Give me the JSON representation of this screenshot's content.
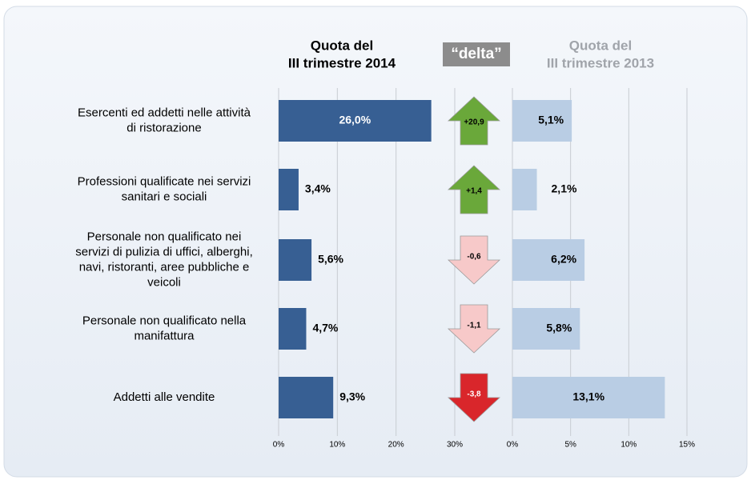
{
  "chart_data": [
    {
      "type": "hbar",
      "title": [
        "Quota del",
        "III trimestre 2014"
      ],
      "categories": [
        [
          "Esercenti ed addetti nelle attività",
          "di ristorazione"
        ],
        [
          "Professioni qualificate nei servizi",
          "sanitari e sociali"
        ],
        [
          "Personale non qualificato nei",
          "servizi di pulizia di uffici, alberghi,",
          "navi, ristoranti, aree pubbliche e",
          "veicoli"
        ],
        [
          "Personale non qualificato nella",
          "manifattura"
        ],
        [
          "Addetti alle vendite"
        ]
      ],
      "values": [
        26.0,
        3.4,
        5.6,
        4.7,
        9.3
      ],
      "value_labels": [
        "26,0%",
        "3,4%",
        "5,6%",
        "4,7%",
        "9,3%"
      ],
      "color": "#375f93",
      "xlim": [
        0,
        30
      ],
      "xticks": [
        {
          "value": 0,
          "label": "0%"
        },
        {
          "value": 10,
          "label": "10%"
        },
        {
          "value": 20,
          "label": "20%"
        },
        {
          "value": 30,
          "label": "30%"
        }
      ],
      "grid": true
    },
    {
      "type": "arrow",
      "title": "“delta”",
      "values": [
        20.9,
        1.4,
        -0.6,
        -1.1,
        -3.8
      ],
      "value_labels": [
        "+20,9",
        "+1,4",
        "-0,6",
        "-1,1",
        "-3,8"
      ],
      "colors": [
        "#6aa83a",
        "#6aa83a",
        "#f7c9c9",
        "#f7c9c9",
        "#d9262b"
      ]
    },
    {
      "type": "hbar",
      "title": [
        "Quota del",
        "III trimestre 2013"
      ],
      "values": [
        5.1,
        2.1,
        6.2,
        5.8,
        13.1
      ],
      "value_labels": [
        "5,1%",
        "2,1%",
        "6,2%",
        "5,8%",
        "13,1%"
      ],
      "color": "#b9cde4",
      "xlim": [
        0,
        15
      ],
      "xticks": [
        {
          "value": 0,
          "label": "0%"
        },
        {
          "value": 5,
          "label": "5%"
        },
        {
          "value": 10,
          "label": "10%"
        },
        {
          "value": 15,
          "label": "15%"
        }
      ],
      "grid": true
    }
  ]
}
